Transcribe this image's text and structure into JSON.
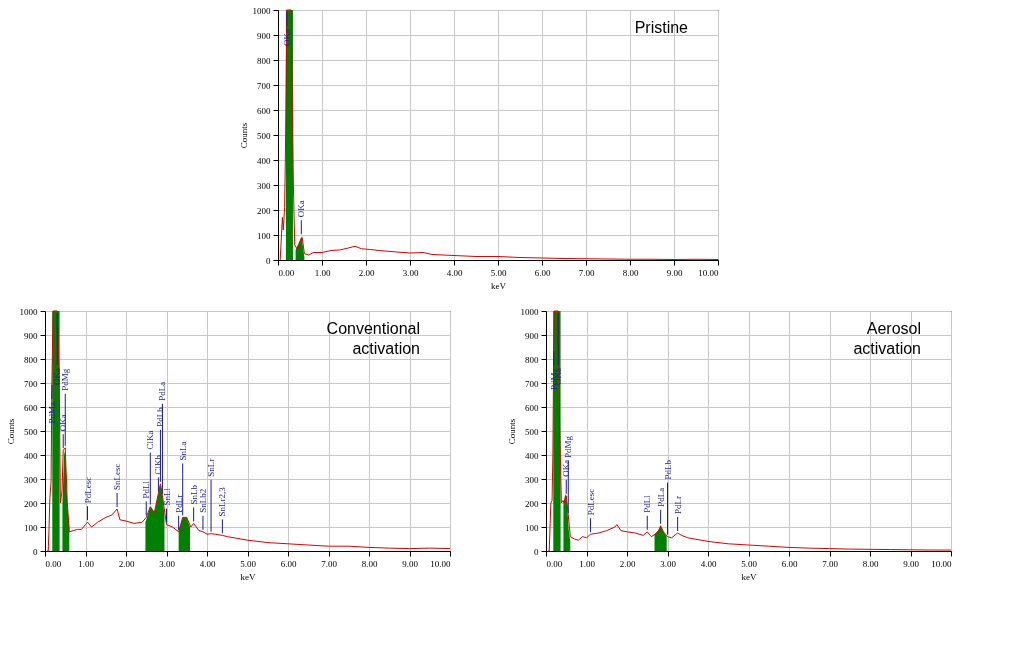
{
  "chart_data": [
    {
      "type": "line",
      "title": "Pristine",
      "xlabel": "keV",
      "ylabel": "Counts",
      "xlim": [
        0,
        10
      ],
      "ylim": [
        0,
        1000
      ],
      "xticks": [
        {
          "value": 0,
          "label": "0.00"
        },
        {
          "value": 1,
          "label": "1.00"
        },
        {
          "value": 2,
          "label": "2.00"
        },
        {
          "value": 3,
          "label": "3.00"
        },
        {
          "value": 4,
          "label": "4.00"
        },
        {
          "value": 5,
          "label": "5.00"
        },
        {
          "value": 6,
          "label": "6.00"
        },
        {
          "value": 7,
          "label": "7.00"
        },
        {
          "value": 8,
          "label": "8.00"
        },
        {
          "value": 9,
          "label": "9.00"
        },
        {
          "value": 10,
          "label": "10.00"
        }
      ],
      "yticks": [
        0,
        100,
        200,
        300,
        400,
        500,
        600,
        700,
        800,
        900,
        1000
      ],
      "grid": true,
      "series": [
        {
          "color": "#e00000",
          "x": [
            0.05,
            0.1,
            0.12,
            0.15,
            0.17,
            0.2,
            0.3,
            0.35,
            0.38,
            0.45,
            0.5,
            0.55,
            0.6,
            0.7,
            0.8,
            1.0,
            1.2,
            1.4,
            1.6,
            1.75,
            1.9,
            2.1,
            2.3,
            2.5,
            2.7,
            3.0,
            3.3,
            3.5,
            4.0,
            4.5,
            5.0,
            5.5,
            6.0,
            6.5,
            7.0,
            7.5,
            8.0,
            8.5,
            9.0,
            9.5,
            10.0
          ],
          "values": [
            0,
            170,
            120,
            210,
            440,
            1000,
            1000,
            300,
            60,
            40,
            70,
            90,
            25,
            20,
            30,
            30,
            38,
            40,
            48,
            55,
            45,
            42,
            38,
            35,
            32,
            28,
            30,
            22,
            18,
            14,
            14,
            10,
            8,
            6,
            5,
            4,
            3,
            3,
            2,
            3,
            2
          ]
        },
        {
          "type": "area",
          "color": "#008000",
          "x": [
            0.18,
            0.34
          ],
          "values": [
            1000,
            1000
          ]
        },
        {
          "type": "area",
          "color": "#008000",
          "x": [
            0.4,
            0.45,
            0.5,
            0.53,
            0.57,
            0.6
          ],
          "values": [
            40,
            60,
            80,
            95,
            50,
            10
          ]
        }
      ],
      "annotations": [
        {
          "text": "OKa",
          "x": 0.2,
          "y": 1000
        },
        {
          "text": "OKa",
          "x": 0.53,
          "y": 95
        }
      ]
    },
    {
      "type": "line",
      "title": "Conventional activation",
      "xlabel": "keV",
      "ylabel": "Counts",
      "xlim": [
        0,
        10
      ],
      "ylim": [
        0,
        1000
      ],
      "xticks": [
        {
          "value": 0,
          "label": "0.00"
        },
        {
          "value": 1,
          "label": "1.00"
        },
        {
          "value": 2,
          "label": "2.00"
        },
        {
          "value": 3,
          "label": "3.00"
        },
        {
          "value": 4,
          "label": "4.00"
        },
        {
          "value": 5,
          "label": "5.00"
        },
        {
          "value": 6,
          "label": "6.00"
        },
        {
          "value": 7,
          "label": "7.00"
        },
        {
          "value": 8,
          "label": "8.00"
        },
        {
          "value": 9,
          "label": "9.00"
        },
        {
          "value": 10,
          "label": "10.00"
        }
      ],
      "yticks": [
        0,
        100,
        200,
        300,
        400,
        500,
        600,
        700,
        800,
        900,
        1000
      ],
      "grid": true,
      "series": [
        {
          "color": "#e00000",
          "x": [
            0.05,
            0.08,
            0.1,
            0.12,
            0.15,
            0.17,
            0.2,
            0.3,
            0.35,
            0.38,
            0.42,
            0.45,
            0.5,
            0.55,
            0.6,
            0.7,
            0.8,
            0.9,
            1.0,
            1.05,
            1.15,
            1.3,
            1.5,
            1.65,
            1.78,
            1.85,
            2.0,
            2.2,
            2.4,
            2.5,
            2.6,
            2.7,
            2.8,
            2.85,
            2.9,
            3.0,
            3.15,
            3.3,
            3.4,
            3.5,
            3.6,
            3.67,
            3.8,
            3.9,
            4.0,
            4.1,
            4.2,
            4.38,
            4.5,
            5.0,
            5.5,
            6.0,
            6.5,
            7.0,
            7.5,
            8.0,
            8.5,
            9.0,
            9.5,
            10.0
          ],
          "values": [
            0,
            0,
            100,
            220,
            290,
            700,
            1000,
            1000,
            730,
            200,
            250,
            420,
            430,
            200,
            80,
            85,
            90,
            90,
            110,
            120,
            100,
            120,
            140,
            150,
            175,
            130,
            125,
            115,
            120,
            140,
            185,
            160,
            240,
            280,
            230,
            110,
            100,
            80,
            140,
            140,
            100,
            115,
            85,
            80,
            70,
            72,
            70,
            65,
            60,
            45,
            35,
            30,
            25,
            20,
            20,
            15,
            12,
            10,
            12,
            10
          ]
        },
        {
          "type": "area",
          "color": "#008000",
          "x": [
            0.18,
            0.36
          ],
          "values": [
            1000,
            1000
          ]
        },
        {
          "type": "area",
          "color": "#008000",
          "x": [
            0.43,
            0.47,
            0.5,
            0.55,
            0.6
          ],
          "values": [
            200,
            400,
            420,
            200,
            100
          ]
        },
        {
          "type": "area",
          "color": "#008000",
          "x": [
            2.48,
            2.6,
            2.7,
            2.8,
            2.85,
            2.9,
            2.95
          ],
          "values": [
            120,
            185,
            160,
            240,
            280,
            230,
            150
          ]
        },
        {
          "type": "area",
          "color": "#008000",
          "x": [
            3.3,
            3.4,
            3.5,
            3.58
          ],
          "values": [
            80,
            140,
            140,
            100
          ]
        }
      ],
      "annotations": [
        {
          "text": "PdMz",
          "x": 0.17,
          "y": 700
        },
        {
          "text": "OKa",
          "x": 0.3,
          "y": 1000
        },
        {
          "text": "OKa",
          "x": 0.45,
          "y": 420
        },
        {
          "text": "PdMg",
          "x": 0.5,
          "y": 430
        },
        {
          "text": "PdLesc",
          "x": 1.05,
          "y": 120
        },
        {
          "text": "SnLesc",
          "x": 1.78,
          "y": 175
        },
        {
          "text": "PdLl",
          "x": 2.5,
          "y": 140
        },
        {
          "text": "ClKa",
          "x": 2.6,
          "y": 185
        },
        {
          "text": "ClKb",
          "x": 2.8,
          "y": 240
        },
        {
          "text": "PdLb",
          "x": 2.85,
          "y": 280
        },
        {
          "text": "PdLa",
          "x": 2.9,
          "y": 230
        },
        {
          "text": "SnLl",
          "x": 3.0,
          "y": 110
        },
        {
          "text": "PdLr",
          "x": 3.3,
          "y": 80
        },
        {
          "text": "SnLa",
          "x": 3.4,
          "y": 140
        },
        {
          "text": "SnLb",
          "x": 3.67,
          "y": 115
        },
        {
          "text": "SnLb2",
          "x": 3.9,
          "y": 80
        },
        {
          "text": "SnLr",
          "x": 4.1,
          "y": 72
        },
        {
          "text": "SnLr2,3",
          "x": 4.38,
          "y": 65
        }
      ]
    },
    {
      "type": "line",
      "title": "Aerosol activation",
      "xlabel": "keV",
      "ylabel": "Counts",
      "xlim": [
        0,
        10
      ],
      "ylim": [
        0,
        1000
      ],
      "xticks": [
        {
          "value": 0,
          "label": "0.00"
        },
        {
          "value": 1,
          "label": "1.00"
        },
        {
          "value": 2,
          "label": "2.00"
        },
        {
          "value": 3,
          "label": "3.00"
        },
        {
          "value": 4,
          "label": "4.00"
        },
        {
          "value": 5,
          "label": "5.00"
        },
        {
          "value": 6,
          "label": "6.00"
        },
        {
          "value": 7,
          "label": "7.00"
        },
        {
          "value": 8,
          "label": "8.00"
        },
        {
          "value": 9,
          "label": "9.00"
        },
        {
          "value": 10,
          "label": "10.00"
        }
      ],
      "yticks": [
        0,
        100,
        200,
        300,
        400,
        500,
        600,
        700,
        800,
        900,
        1000
      ],
      "grid": true,
      "series": [
        {
          "color": "#e00000",
          "x": [
            0.05,
            0.08,
            0.1,
            0.12,
            0.15,
            0.17,
            0.19,
            0.2,
            0.3,
            0.33,
            0.38,
            0.42,
            0.45,
            0.5,
            0.55,
            0.6,
            0.7,
            0.8,
            0.9,
            1.0,
            1.1,
            1.3,
            1.5,
            1.7,
            1.75,
            1.85,
            2.0,
            2.2,
            2.4,
            2.5,
            2.6,
            2.7,
            2.8,
            2.83,
            2.9,
            3.0,
            3.1,
            3.25,
            3.35,
            3.5,
            4.0,
            4.5,
            5.0,
            5.5,
            6.0,
            6.5,
            7.0,
            7.5,
            8.0,
            8.5,
            9.0,
            9.5,
            10.0
          ],
          "values": [
            0,
            0,
            100,
            200,
            210,
            400,
            840,
            1000,
            1000,
            570,
            200,
            210,
            200,
            230,
            150,
            60,
            50,
            45,
            60,
            55,
            70,
            75,
            85,
            100,
            110,
            85,
            80,
            75,
            65,
            80,
            60,
            70,
            90,
            105,
            80,
            60,
            55,
            75,
            65,
            55,
            40,
            30,
            25,
            20,
            15,
            12,
            10,
            8,
            7,
            6,
            5,
            4,
            4
          ]
        },
        {
          "type": "area",
          "color": "#008000",
          "x": [
            0.18,
            0.36
          ],
          "values": [
            1000,
            1000
          ]
        },
        {
          "type": "area",
          "color": "#008000",
          "x": [
            0.43,
            0.48,
            0.52,
            0.56,
            0.6
          ],
          "values": [
            200,
            240,
            200,
            90,
            40
          ]
        },
        {
          "type": "area",
          "color": "#008000",
          "x": [
            2.68,
            2.75,
            2.83,
            2.9,
            2.98
          ],
          "values": [
            70,
            80,
            105,
            80,
            60
          ]
        }
      ],
      "annotations": [
        {
          "text": "PdMz",
          "x": 0.19,
          "y": 840
        },
        {
          "text": "OKa",
          "x": 0.3,
          "y": 1000
        },
        {
          "text": "OKa",
          "x": 0.5,
          "y": 230
        },
        {
          "text": "PdMg",
          "x": 0.55,
          "y": 150
        },
        {
          "text": "PdLesc",
          "x": 1.1,
          "y": 70
        },
        {
          "text": "PdLl",
          "x": 2.5,
          "y": 80
        },
        {
          "text": "PdLa",
          "x": 2.83,
          "y": 105
        },
        {
          "text": "PdLb",
          "x": 3.0,
          "y": 60
        },
        {
          "text": "PdLr",
          "x": 3.25,
          "y": 75
        }
      ]
    }
  ]
}
